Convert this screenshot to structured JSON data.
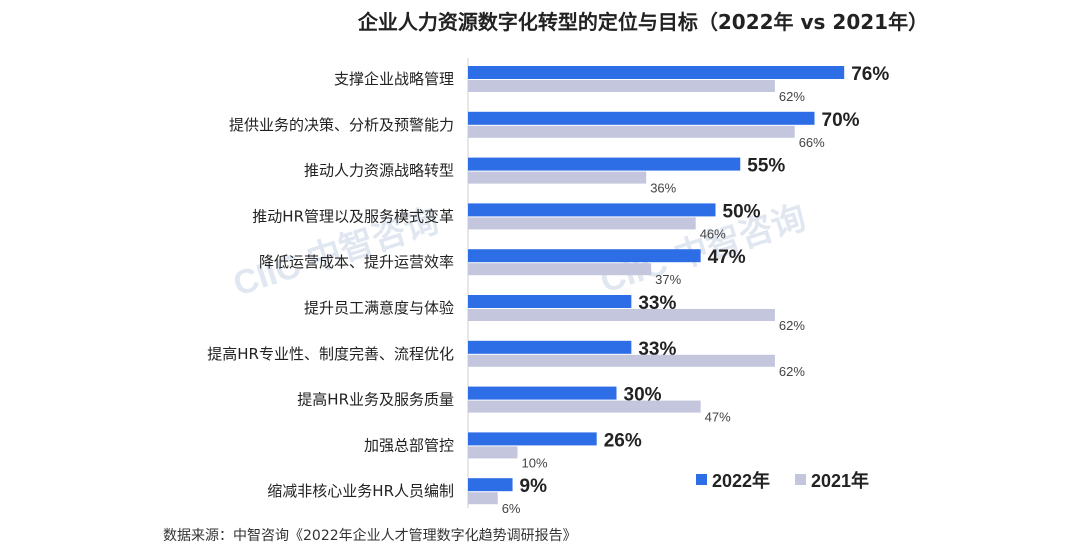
{
  "chart_data": {
    "type": "bar",
    "orientation": "horizontal",
    "title": "企业人力资源数字化转型的定位与目标（2022年 vs 2021年）",
    "categories": [
      "支撑企业战略管理",
      "提供业务的决策、分析及预警能力",
      "推动人力资源战略转型",
      "推动HR管理以及服务模式变革",
      "降低运营成本、提升运营效率",
      "提升员工满意度与体验",
      "提高HR专业性、制度完善、流程优化",
      "提高HR业务及服务质量",
      "加强总部管控",
      "缩减非核心业务HR人员编制"
    ],
    "series": [
      {
        "name": "2022年",
        "values": [
          76,
          70,
          55,
          50,
          47,
          33,
          33,
          30,
          26,
          9
        ],
        "labels": [
          "76%",
          "70%",
          "55%",
          "50%",
          "47%",
          "33%",
          "33%",
          "30%",
          "26%",
          "9%"
        ],
        "color": "#2d6ee6"
      },
      {
        "name": "2021年",
        "values": [
          62,
          66,
          36,
          46,
          37,
          62,
          62,
          47,
          10,
          6
        ],
        "labels": [
          "62%",
          "66%",
          "36%",
          "46%",
          "37%",
          "62%",
          "62%",
          "47%",
          "10%",
          "6%"
        ],
        "color": "#c3c6dd"
      }
    ],
    "xlim": [
      0,
      100
    ],
    "grid": false,
    "legend_position": "bottom-right",
    "source": "数据来源：中智咨询《2022年企业人才管理数字化趋势调研报告》",
    "watermark": "CIIC 中智咨询"
  }
}
